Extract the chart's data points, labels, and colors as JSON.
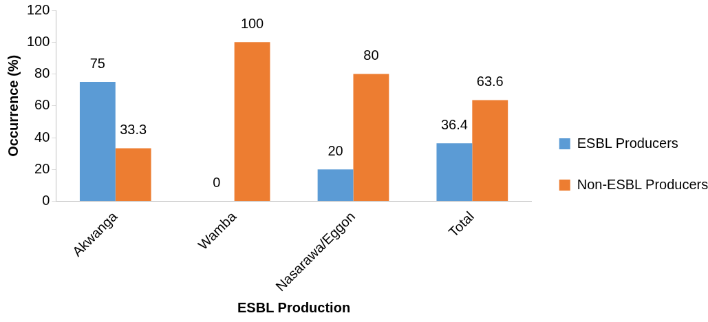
{
  "chart_data": {
    "type": "bar",
    "xlabel": "ESBL Production",
    "ylabel": "Occurrence (%)",
    "categories": [
      "Akwanga",
      "Wamba",
      "Nasarawa/Eggon",
      "Total"
    ],
    "series": [
      {
        "name": "ESBL Producers",
        "color": "#5b9bd5",
        "values": [
          75,
          0,
          20,
          36.4
        ]
      },
      {
        "name": "Non-ESBL Producers",
        "color": "#ed7d31",
        "values": [
          33.3,
          100,
          80,
          63.6
        ]
      }
    ],
    "ylim": [
      0,
      120
    ],
    "yticks": [
      0,
      20,
      40,
      60,
      80,
      100,
      120
    ],
    "data_labels": true,
    "legend": "right",
    "grid": false
  }
}
